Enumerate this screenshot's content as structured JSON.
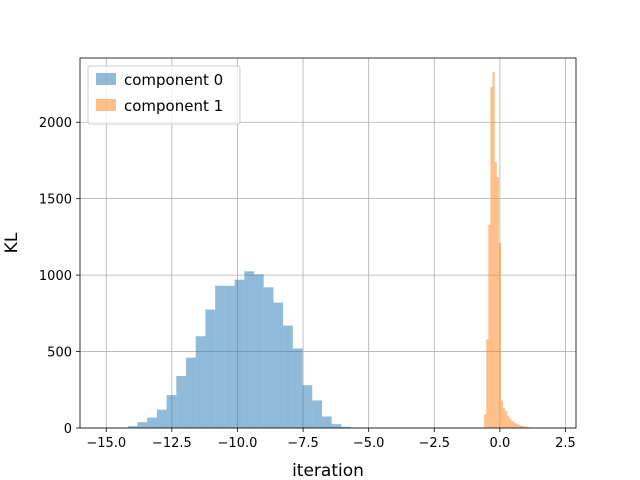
{
  "chart_data": {
    "type": "histogram",
    "title": "",
    "xlabel": "iteration",
    "ylabel": "KL",
    "xlim": [
      -16.0,
      2.9
    ],
    "ylim": [
      0,
      2420
    ],
    "xticks": [
      {
        "value": -15.0,
        "label": "−15.0"
      },
      {
        "value": -12.5,
        "label": "−12.5"
      },
      {
        "value": -10.0,
        "label": "−10.0"
      },
      {
        "value": -7.5,
        "label": "−7.5"
      },
      {
        "value": -5.0,
        "label": "−5.0"
      },
      {
        "value": -2.5,
        "label": "−2.5"
      },
      {
        "value": 0.0,
        "label": "0.0"
      },
      {
        "value": 2.5,
        "label": "2.5"
      }
    ],
    "yticks": [
      {
        "value": 0,
        "label": "0"
      },
      {
        "value": 500,
        "label": "500"
      },
      {
        "value": 1000,
        "label": "1000"
      },
      {
        "value": 1500,
        "label": "1500"
      },
      {
        "value": 2000,
        "label": "2000"
      }
    ],
    "grid": true,
    "legend_position": "top-left",
    "series": [
      {
        "name": "component 0",
        "color": "#1f77b4",
        "opacity": 0.5,
        "bin_edges": [
          -14.55,
          -14.18,
          -13.81,
          -13.44,
          -13.07,
          -12.7,
          -12.33,
          -11.96,
          -11.59,
          -11.22,
          -10.85,
          -10.48,
          -10.11,
          -9.74,
          -9.37,
          -9.0,
          -8.63,
          -8.26,
          -7.89,
          -7.52,
          -7.15,
          -6.78,
          -6.41,
          -6.04,
          -5.67,
          -5.3,
          -4.93
        ],
        "counts": [
          2,
          12,
          38,
          68,
          120,
          215,
          340,
          460,
          600,
          775,
          930,
          930,
          970,
          1025,
          1005,
          920,
          820,
          670,
          520,
          280,
          180,
          75,
          25,
          8,
          2,
          1
        ]
      },
      {
        "name": "component 1",
        "color": "#ff7f0e",
        "opacity": 0.5,
        "bin_edges": [
          -0.6,
          -0.52,
          -0.44,
          -0.36,
          -0.28,
          -0.2,
          -0.12,
          -0.04,
          0.04,
          0.12,
          0.2,
          0.28,
          0.36,
          0.44,
          0.52,
          0.6,
          0.68,
          0.76,
          0.84,
          0.92,
          1.0,
          1.08,
          1.16,
          1.24,
          1.32,
          1.4,
          1.48,
          1.56
        ],
        "counts": [
          90,
          580,
          1330,
          2230,
          2330,
          1740,
          1640,
          1210,
          180,
          130,
          110,
          80,
          60,
          45,
          35,
          28,
          22,
          17,
          13,
          10,
          7,
          5,
          4,
          3,
          2,
          2,
          1
        ]
      }
    ]
  }
}
